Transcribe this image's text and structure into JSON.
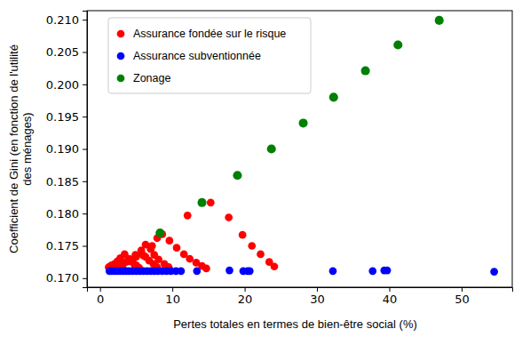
{
  "chart_data": {
    "type": "scatter",
    "xlabel": "Pertes totales en termes de bien-être social (%)",
    "ylabel": [
      "Coefficient de Gini (en fonction de l'utilité",
      "des ménages)"
    ],
    "xlim": [
      -1.8,
      57
    ],
    "ylim": [
      0.1686,
      0.2114
    ],
    "xticks": [
      0,
      10,
      20,
      30,
      40,
      50
    ],
    "yticks": [
      {
        "value": 0.17,
        "label": "0.170"
      },
      0.175,
      {
        "value": 0.18,
        "label": "0.180"
      },
      0.185,
      {
        "value": 0.19,
        "label": "0.190"
      },
      0.195,
      {
        "value": 0.2,
        "label": "0.200"
      },
      0.205,
      {
        "value": 0.21,
        "label": "0.210"
      }
    ],
    "grid": false,
    "legend": "upper left",
    "series": [
      {
        "name": "Assurance fondée sur le risque",
        "color": "#ff0000",
        "marker": "o",
        "x": [
          1.2,
          1.6,
          2.0,
          2.4,
          2.8,
          3.4,
          4.0,
          4.5,
          5.0,
          5.4,
          2.2,
          2.9,
          3.6,
          4.3,
          5.0,
          5.7,
          6.3,
          6.8,
          7.4,
          7.9,
          3.1,
          4.0,
          4.9,
          5.7,
          6.3,
          7.0,
          7.5,
          8.1,
          8.9,
          9.5,
          4.8,
          6.0,
          7.2,
          7.9,
          8.6,
          9.6,
          10.6,
          11.6,
          12.4,
          13.3,
          14.1,
          14.7,
          12.1,
          15.3,
          17.8,
          19.7,
          21.0,
          22.2,
          23.4,
          24.1
        ],
        "values": [
          0.1717,
          0.172,
          0.1722,
          0.1726,
          0.1731,
          0.1737,
          0.173,
          0.1725,
          0.172,
          0.1716,
          0.1718,
          0.1722,
          0.1725,
          0.1729,
          0.1733,
          0.174,
          0.1733,
          0.1727,
          0.1722,
          0.1717,
          0.1718,
          0.1726,
          0.1736,
          0.1743,
          0.1752,
          0.1745,
          0.1736,
          0.1729,
          0.1722,
          0.1717,
          0.172,
          0.1735,
          0.175,
          0.1762,
          0.1768,
          0.1758,
          0.1747,
          0.1737,
          0.173,
          0.1724,
          0.1719,
          0.1715,
          0.1797,
          0.1817,
          0.1794,
          0.1767,
          0.175,
          0.1737,
          0.1725,
          0.1718
        ]
      },
      {
        "name": "Assurance subventionnée",
        "color": "#0000ff",
        "marker": "o",
        "x": [
          1.3,
          1.6,
          2.0,
          2.4,
          2.8,
          3.2,
          3.6,
          4.0,
          4.5,
          5.0,
          5.5,
          6.0,
          6.5,
          7.0,
          7.5,
          8.0,
          8.6,
          9.2,
          9.8,
          10.5,
          11.2,
          13.4,
          17.9,
          19.8,
          20.4,
          20.7,
          32.2,
          37.7,
          39.3,
          39.7,
          54.5
        ],
        "values": [
          0.1711,
          0.1711,
          0.1711,
          0.1711,
          0.1711,
          0.1711,
          0.1711,
          0.1711,
          0.1711,
          0.1711,
          0.1711,
          0.1711,
          0.1711,
          0.1711,
          0.1711,
          0.1711,
          0.1711,
          0.1711,
          0.1711,
          0.1711,
          0.1711,
          0.1711,
          0.1712,
          0.1711,
          0.1711,
          0.1711,
          0.1711,
          0.1711,
          0.1712,
          0.1712,
          0.171
        ]
      },
      {
        "name": "Zonage",
        "color": "#008000",
        "marker": "o",
        "x": [
          8.3,
          14.1,
          19.0,
          23.7,
          28.1,
          32.3,
          36.7,
          41.2,
          46.9
        ],
        "values": [
          0.177,
          0.1817,
          0.1859,
          0.19,
          0.194,
          0.198,
          0.2021,
          0.2061,
          0.2099
        ]
      }
    ]
  }
}
